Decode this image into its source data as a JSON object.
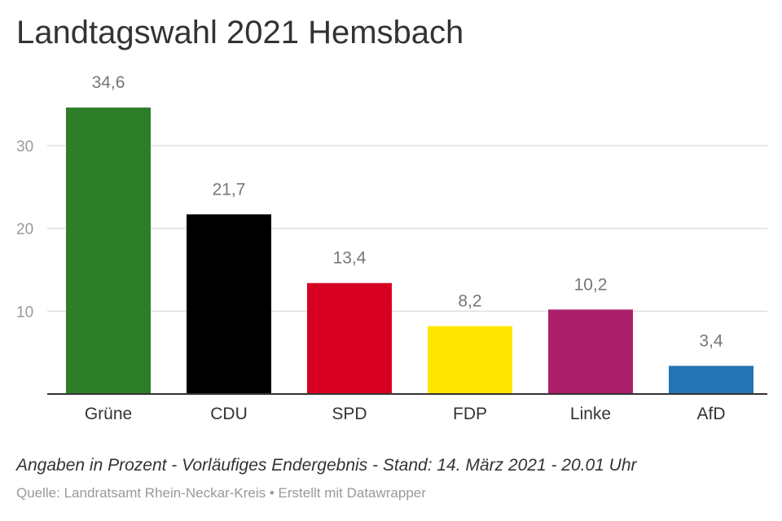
{
  "header": {
    "title": "Landtagswahl 2021 Hemsbach"
  },
  "chart_data": {
    "type": "bar",
    "title": "Landtagswahl 2021 Hemsbach",
    "xlabel": "",
    "ylabel": "",
    "categories": [
      "Grüne",
      "CDU",
      "SPD",
      "FDP",
      "Linke",
      "AfD"
    ],
    "values": [
      34.6,
      21.7,
      13.4,
      8.2,
      10.2,
      3.4
    ],
    "value_labels": [
      "34,6",
      "21,7",
      "13,4",
      "8,2",
      "10,2",
      "3,4"
    ],
    "colors": [
      "#2e7d28",
      "#000000",
      "#d80020",
      "#ffe600",
      "#ac1f6b",
      "#2474b4"
    ],
    "yticks": [
      10,
      20,
      30
    ],
    "ylim": [
      0,
      38
    ],
    "grid": true,
    "legend": "none"
  },
  "footer": {
    "notes": "Angaben in Prozent - Vorläufiges Endergebnis - Stand: 14. März 2021 - 20.01 Uhr",
    "source": "Quelle: Landratsamt Rhein-Neckar-Kreis • Erstellt mit Datawrapper"
  },
  "colors": {
    "grid": "#e0e0e0",
    "axis": "#333333",
    "tick_label": "#999999",
    "value_label": "#777777",
    "category_label": "#333333"
  }
}
